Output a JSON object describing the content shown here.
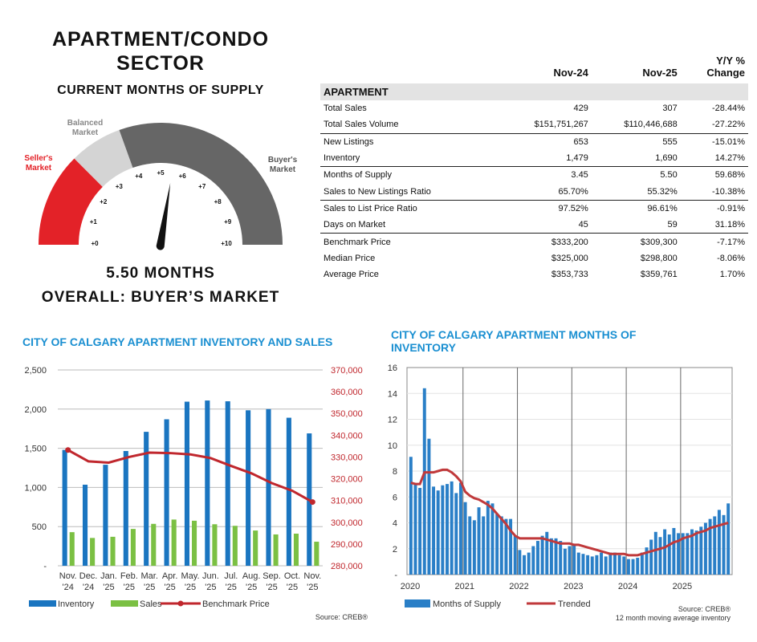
{
  "gauge": {
    "title_line1": "APARTMENT/CONDO",
    "title_line2": "SECTOR",
    "subtitle": "CURRENT MONTHS OF SUPPLY",
    "sellers_label": "Seller's\nMarket",
    "balanced_label": "Balanced\nMarket",
    "buyers_label": "Buyer's\nMarket",
    "ticks": [
      "+0",
      "+1",
      "+2",
      "+3",
      "+4",
      "+5",
      "+6",
      "+7",
      "+8",
      "+9",
      "+10"
    ],
    "value": 5.5,
    "months_text": "5.50 MONTHS",
    "overall_text": "OVERALL: BUYER’S MARKET",
    "colors": {
      "sellers": "#e32228",
      "balanced": "#d4d4d4",
      "buyers": "#666666",
      "needle": "#111111"
    }
  },
  "stats_table": {
    "col1": "Nov-24",
    "col2": "Nov-25",
    "col3_line1": "Y/Y %",
    "col3_line2": "Change",
    "section": "APARTMENT",
    "rows": [
      {
        "label": "Total Sales",
        "a": "429",
        "b": "307",
        "c": "-28.44%"
      },
      {
        "label": "Total Sales Volume",
        "a": "$151,751,267",
        "b": "$110,446,688",
        "c": "-27.22%"
      },
      {
        "label": "New Listings",
        "a": "653",
        "b": "555",
        "c": "-15.01%"
      },
      {
        "label": "Inventory",
        "a": "1,479",
        "b": "1,690",
        "c": "14.27%"
      },
      {
        "label": "Months of Supply",
        "a": "3.45",
        "b": "5.50",
        "c": "59.68%"
      },
      {
        "label": "Sales to New Listings Ratio",
        "a": "65.70%",
        "b": "55.32%",
        "c": "-10.38%"
      },
      {
        "label": "Sales to List Price Ratio",
        "a": "97.52%",
        "b": "96.61%",
        "c": "-0.91%"
      },
      {
        "label": "Days on Market",
        "a": "45",
        "b": "59",
        "c": "31.18%"
      },
      {
        "label": "Benchmark Price",
        "a": "$333,200",
        "b": "$309,300",
        "c": "-7.17%"
      },
      {
        "label": "Median Price",
        "a": "$325,000",
        "b": "$298,800",
        "c": "-8.06%"
      },
      {
        "label": "Average Price",
        "a": "$353,733",
        "b": "$359,761",
        "c": "1.70%"
      }
    ]
  },
  "chart_data": [
    {
      "type": "bar",
      "title": "CITY OF CALGARY APARTMENT INVENTORY AND SALES",
      "categories": [
        "Nov.\n'24",
        "Dec.\n'24",
        "Jan.\n'25",
        "Feb.\n'25",
        "Mar.\n'25",
        "Apr.\n'25",
        "May.\n'25",
        "Jun.\n'25",
        "Jul.\n'25",
        "Aug.\n'25",
        "Sep.\n'25",
        "Oct.\n'25",
        "Nov.\n'25"
      ],
      "series": [
        {
          "name": "Inventory",
          "axis": "left",
          "color": "#1a75c0",
          "values": [
            1479,
            1035,
            1290,
            1465,
            1710,
            1870,
            2095,
            2110,
            2100,
            1985,
            2000,
            1890,
            1690
          ]
        },
        {
          "name": "Sales",
          "axis": "left",
          "color": "#7bc043",
          "values": [
            429,
            355,
            370,
            470,
            535,
            590,
            575,
            530,
            510,
            450,
            400,
            410,
            307
          ]
        },
        {
          "name": "Benchmark Price",
          "axis": "right",
          "type": "line",
          "color": "#c0272d",
          "values": [
            333200,
            328000,
            327400,
            330000,
            332000,
            331800,
            331200,
            329500,
            325900,
            322500,
            318000,
            314500,
            309300
          ]
        }
      ],
      "ylim_left": [
        0,
        2500
      ],
      "yticks_left": [
        "-",
        "500",
        "1,000",
        "1,500",
        "2,000",
        "2,500"
      ],
      "ylim_right": [
        280000,
        370000
      ],
      "yticks_right": [
        "280,000",
        "290,000",
        "300,000",
        "310,000",
        "320,000",
        "330,000",
        "340,000",
        "350,000",
        "360,000",
        "370,000"
      ],
      "legend": [
        "Inventory",
        "Sales",
        "Benchmark Price"
      ],
      "legend_position": "bottom",
      "source": "Source: CREB®"
    },
    {
      "type": "bar",
      "title": "CITY OF CALGARY APARTMENT MONTHS OF INVENTORY",
      "x_labels": [
        "2020",
        "2021",
        "2022",
        "2023",
        "2024",
        "2025"
      ],
      "series": [
        {
          "name": "Months of Supply",
          "color": "#2a7fc7",
          "values": [
            9.1,
            7.0,
            6.7,
            14.4,
            10.5,
            6.8,
            6.5,
            6.9,
            7.0,
            7.2,
            6.3,
            7.1,
            5.6,
            4.5,
            4.2,
            5.2,
            4.5,
            5.7,
            5.5,
            4.7,
            4.5,
            4.3,
            4.3,
            3.0,
            1.9,
            1.5,
            1.7,
            2.2,
            2.6,
            3.0,
            3.3,
            2.8,
            2.8,
            2.6,
            2.0,
            2.2,
            2.3,
            1.7,
            1.6,
            1.5,
            1.4,
            1.5,
            1.7,
            1.4,
            1.7,
            1.7,
            1.5,
            1.4,
            1.2,
            1.2,
            1.3,
            1.7,
            2.1,
            2.7,
            3.3,
            2.9,
            3.5,
            3.1,
            3.6,
            3.2,
            3.2,
            3.2,
            3.5,
            3.4,
            3.7,
            4.0,
            4.3,
            4.5,
            5.0,
            4.6,
            5.5
          ]
        },
        {
          "name": "Trended",
          "type": "line",
          "color": "#c0393b",
          "values": [
            7.1,
            7.0,
            7.0,
            7.9,
            7.9,
            7.9,
            8.0,
            8.1,
            8.1,
            7.9,
            7.6,
            7.2,
            6.4,
            6.1,
            5.9,
            5.8,
            5.6,
            5.4,
            5.1,
            4.7,
            4.3,
            3.9,
            3.4,
            3.0,
            2.8,
            2.8,
            2.8,
            2.8,
            2.8,
            2.8,
            2.7,
            2.6,
            2.5,
            2.4,
            2.4,
            2.4,
            2.3,
            2.3,
            2.2,
            2.1,
            2.0,
            1.9,
            1.8,
            1.7,
            1.6,
            1.6,
            1.6,
            1.6,
            1.5,
            1.5,
            1.5,
            1.6,
            1.7,
            1.8,
            1.9,
            2.0,
            2.1,
            2.3,
            2.5,
            2.6,
            2.8,
            2.9,
            3.0,
            3.2,
            3.3,
            3.4,
            3.6,
            3.7,
            3.8,
            3.9,
            4.0
          ]
        }
      ],
      "ylim": [
        0,
        16
      ],
      "yticks": [
        "-",
        "2",
        "4",
        "6",
        "8",
        "10",
        "12",
        "14",
        "16"
      ],
      "legend": [
        "Months of Supply",
        "Trended"
      ],
      "legend_position": "bottom",
      "source_line1": "Source: CREB®",
      "source_line2": "12 month moving average inventory"
    }
  ]
}
